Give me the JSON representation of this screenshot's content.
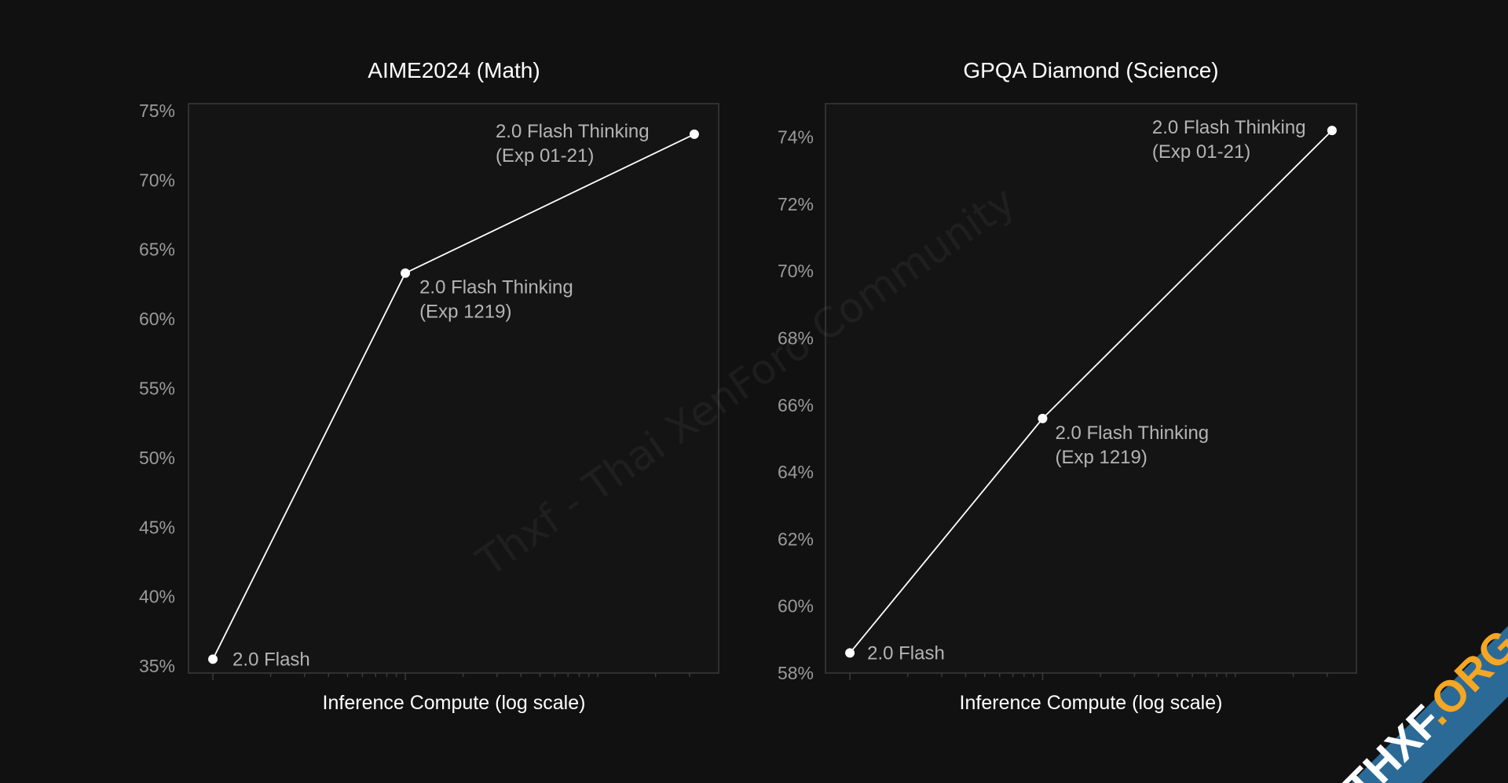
{
  "colors": {
    "background": "#111111",
    "plot_background": "#141414",
    "frame": "#3a3a3a",
    "line": "#ffffff",
    "tick_label": "#9a9a9a",
    "point_label": "#b4b4b4",
    "title": "#ffffff",
    "ribbon": "#2b6a96",
    "ribbon_accent": "#f5a623"
  },
  "watermark": {
    "text": "Thxf - Thai XenForo Community"
  },
  "corner_badge": {
    "main": "THXF",
    "suffix": ".ORG"
  },
  "chart_data": [
    {
      "type": "line",
      "title": "AIME2024 (Math)",
      "xlabel": "Inference Compute (log scale)",
      "ylabel": "",
      "x_scale": "log",
      "ylim": [
        34.5,
        75.5
      ],
      "yticks": [
        35,
        40,
        45,
        50,
        55,
        60,
        65,
        70,
        75
      ],
      "ytick_labels": [
        "35%",
        "40%",
        "45%",
        "50%",
        "55%",
        "60%",
        "65%",
        "70%",
        "75%"
      ],
      "grid": false,
      "points": [
        {
          "label": [
            "2.0 Flash"
          ],
          "y": 35.5
        },
        {
          "label": [
            "2.0 Flash Thinking",
            "(Exp 1219)"
          ],
          "y": 63.3
        },
        {
          "label": [
            "2.0 Flash Thinking",
            "(Exp 01-21)"
          ],
          "y": 73.3
        }
      ]
    },
    {
      "type": "line",
      "title": "GPQA Diamond (Science)",
      "xlabel": "Inference Compute (log scale)",
      "ylabel": "",
      "x_scale": "log",
      "ylim": [
        58.0,
        75.0
      ],
      "yticks": [
        58,
        60,
        62,
        64,
        66,
        68,
        70,
        72,
        74
      ],
      "ytick_labels": [
        "58%",
        "60%",
        "62%",
        "64%",
        "66%",
        "68%",
        "70%",
        "72%",
        "74%"
      ],
      "grid": false,
      "points": [
        {
          "label": [
            "2.0 Flash"
          ],
          "y": 58.6
        },
        {
          "label": [
            "2.0 Flash Thinking",
            "(Exp 1219)"
          ],
          "y": 65.6
        },
        {
          "label": [
            "2.0 Flash Thinking",
            "(Exp 01-21)"
          ],
          "y": 74.2
        }
      ]
    }
  ]
}
